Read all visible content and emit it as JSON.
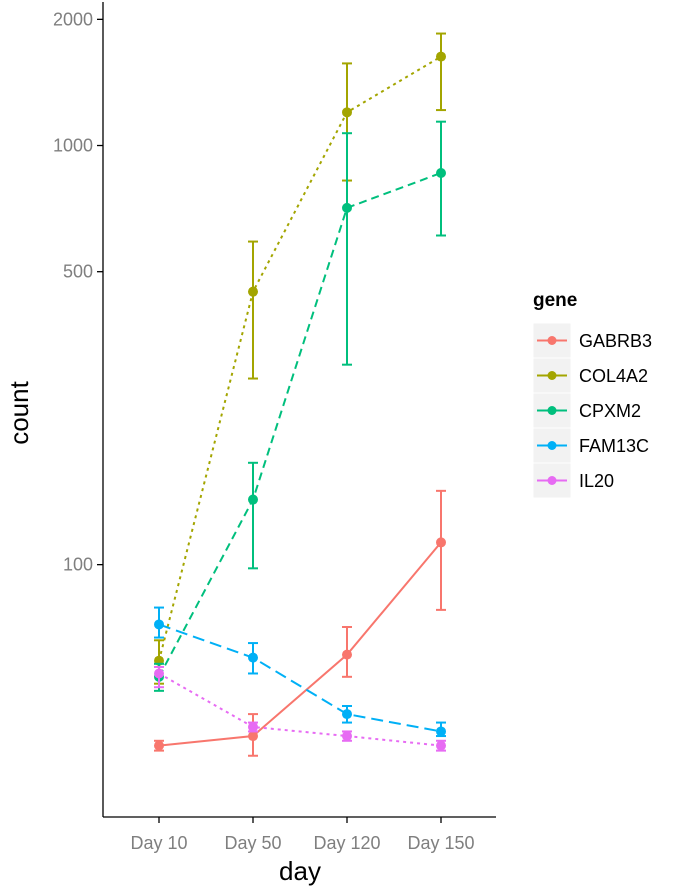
{
  "chart_data": {
    "type": "line",
    "xlabel": "day",
    "ylabel": "count",
    "scale_y": "log10",
    "y_ticks": [
      100,
      500,
      1000,
      2000
    ],
    "ylim": [
      25,
      2200
    ],
    "categories": [
      "Day 10",
      "Day 50",
      "Day 120",
      "Day 150"
    ],
    "legend_title": "gene",
    "legend_position": "right",
    "grid": false,
    "series": [
      {
        "name": "GABRB3",
        "color": "#F8766D",
        "line": "solid",
        "values": [
          37,
          39,
          61,
          113
        ],
        "err_low": [
          36,
          35,
          54,
          78
        ],
        "err_high": [
          38,
          44,
          71,
          150
        ]
      },
      {
        "name": "COL4A2",
        "color": "#A3A500",
        "line": "dotted",
        "values": [
          59,
          448,
          1200,
          1630
        ],
        "err_low": [
          52,
          278,
          825,
          1215
        ],
        "err_high": [
          66,
          590,
          1570,
          1850
        ]
      },
      {
        "name": "CPXM2",
        "color": "#00BF7D",
        "line": "dashed",
        "values": [
          54,
          143,
          710,
          860
        ],
        "err_low": [
          50,
          98,
          300,
          610
        ],
        "err_high": [
          58,
          175,
          1070,
          1140
        ]
      },
      {
        "name": "FAM13C",
        "color": "#00B0F6",
        "line": "longdash",
        "values": [
          72,
          60,
          44,
          40
        ],
        "err_low": [
          67,
          55,
          42,
          39
        ],
        "err_high": [
          79,
          65,
          46,
          42
        ]
      },
      {
        "name": "IL20",
        "color": "#E76BF3",
        "line": "dotted",
        "values": [
          55,
          41,
          39,
          37
        ],
        "err_low": [
          51,
          40,
          38,
          36
        ],
        "err_high": [
          57,
          42,
          40,
          38
        ]
      }
    ]
  }
}
